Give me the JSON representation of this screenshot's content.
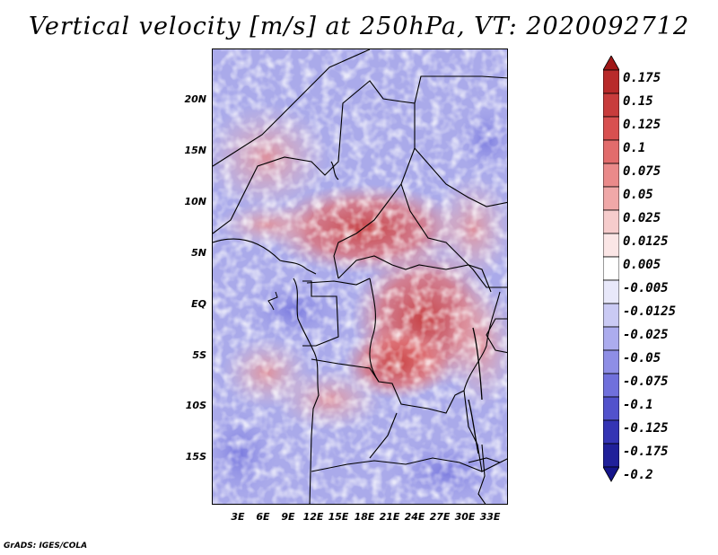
{
  "title": "Vertical velocity [m/s] at 250hPa, VT: 2020092712",
  "map": {
    "latitude_labels": [
      "20N",
      "15N",
      "10N",
      "5N",
      "EQ",
      "5S",
      "10S",
      "15S"
    ],
    "longitude_labels": [
      "3E",
      "6E",
      "9E",
      "12E",
      "15E",
      "18E",
      "21E",
      "24E",
      "27E",
      "30E",
      "33E"
    ]
  },
  "colorbar": {
    "levels": [
      "0.175",
      "0.15",
      "0.125",
      "0.1",
      "0.075",
      "0.05",
      "0.025",
      "0.0125",
      "0.005",
      "-0.005",
      "-0.0125",
      "-0.025",
      "-0.05",
      "-0.075",
      "-0.1",
      "-0.125",
      "-0.175",
      "-0.2"
    ],
    "colors": [
      "#a01818",
      "#b82a2a",
      "#c83c3c",
      "#d85050",
      "#e26c6c",
      "#ea8a8a",
      "#f0a8a8",
      "#f6cccc",
      "#fbe6e6",
      "#ffffff",
      "#e8e8fa",
      "#cacaf4",
      "#acacee",
      "#8e8ee6",
      "#7070dc",
      "#5252cc",
      "#3434b4",
      "#20209a",
      "#14148a"
    ]
  },
  "credit": "GrADS: IGES/COLA"
}
